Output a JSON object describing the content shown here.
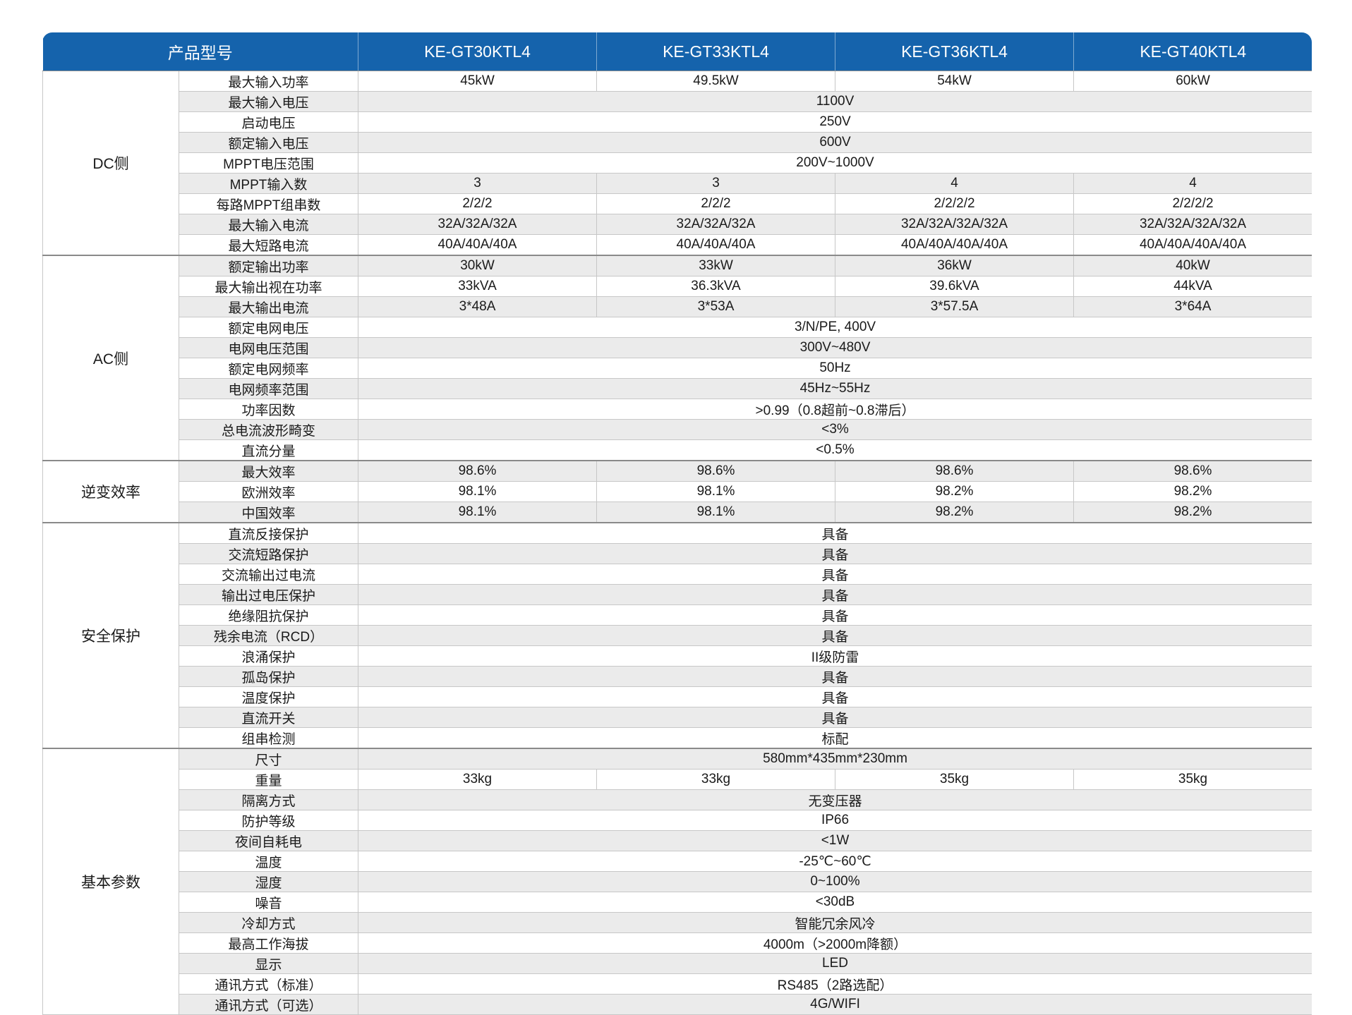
{
  "colors": {
    "header_bg": "#1563ac",
    "header_text": "#ffffff",
    "row_alt_bg": "#ebebeb",
    "border": "#c7c7c7",
    "section_border": "#8a8a8a",
    "text": "#1a1a1a"
  },
  "header": {
    "label": "产品型号",
    "models": [
      "KE-GT30KTL4",
      "KE-GT33KTL4",
      "KE-GT36KTL4",
      "KE-GT40KTL4"
    ]
  },
  "sections": [
    {
      "name": "DC侧",
      "rows": [
        {
          "label": "最大输入功率",
          "values": [
            "45kW",
            "49.5kW",
            "54kW",
            "60kW"
          ]
        },
        {
          "label": "最大输入电压",
          "merged": "1100V"
        },
        {
          "label": "启动电压",
          "merged": "250V"
        },
        {
          "label": "额定输入电压",
          "merged": "600V"
        },
        {
          "label": "MPPT电压范围",
          "merged": "200V~1000V"
        },
        {
          "label": "MPPT输入数",
          "values": [
            "3",
            "3",
            "4",
            "4"
          ]
        },
        {
          "label": "每路MPPT组串数",
          "values": [
            "2/2/2",
            "2/2/2",
            "2/2/2/2",
            "2/2/2/2"
          ]
        },
        {
          "label": "最大输入电流",
          "values": [
            "32A/32A/32A",
            "32A/32A/32A",
            "32A/32A/32A/32A",
            "32A/32A/32A/32A"
          ]
        },
        {
          "label": "最大短路电流",
          "values": [
            "40A/40A/40A",
            "40A/40A/40A",
            "40A/40A/40A/40A",
            "40A/40A/40A/40A"
          ]
        }
      ]
    },
    {
      "name": "AC侧",
      "rows": [
        {
          "label": "额定输出功率",
          "values": [
            "30kW",
            "33kW",
            "36kW",
            "40kW"
          ]
        },
        {
          "label": "最大输出视在功率",
          "values": [
            "33kVA",
            "36.3kVA",
            "39.6kVA",
            "44kVA"
          ]
        },
        {
          "label": "最大输出电流",
          "values": [
            "3*48A",
            "3*53A",
            "3*57.5A",
            "3*64A"
          ]
        },
        {
          "label": "额定电网电压",
          "merged": "3/N/PE, 400V"
        },
        {
          "label": "电网电压范围",
          "merged": "300V~480V"
        },
        {
          "label": "额定电网频率",
          "merged": "50Hz"
        },
        {
          "label": "电网频率范围",
          "merged": "45Hz~55Hz"
        },
        {
          "label": "功率因数",
          "merged": ">0.99（0.8超前~0.8滞后）"
        },
        {
          "label": "总电流波形畸变",
          "merged": "<3%"
        },
        {
          "label": "直流分量",
          "merged": "<0.5%"
        }
      ]
    },
    {
      "name": "逆变效率",
      "rows": [
        {
          "label": "最大效率",
          "values": [
            "98.6%",
            "98.6%",
            "98.6%",
            "98.6%"
          ]
        },
        {
          "label": "欧洲效率",
          "values": [
            "98.1%",
            "98.1%",
            "98.2%",
            "98.2%"
          ]
        },
        {
          "label": "中国效率",
          "values": [
            "98.1%",
            "98.1%",
            "98.2%",
            "98.2%"
          ]
        }
      ]
    },
    {
      "name": "安全保护",
      "rows": [
        {
          "label": "直流反接保护",
          "merged": "具备"
        },
        {
          "label": "交流短路保护",
          "merged": "具备"
        },
        {
          "label": "交流输出过电流",
          "merged": "具备"
        },
        {
          "label": "输出过电压保护",
          "merged": "具备"
        },
        {
          "label": "绝缘阻抗保护",
          "merged": "具备"
        },
        {
          "label": "残余电流（RCD）",
          "merged": "具备"
        },
        {
          "label": "浪涌保护",
          "merged": "II级防雷"
        },
        {
          "label": "孤岛保护",
          "merged": "具备"
        },
        {
          "label": "温度保护",
          "merged": "具备"
        },
        {
          "label": "直流开关",
          "merged": "具备"
        },
        {
          "label": "组串检测",
          "merged": "标配"
        }
      ]
    },
    {
      "name": "基本参数",
      "rows": [
        {
          "label": "尺寸",
          "merged": "580mm*435mm*230mm"
        },
        {
          "label": "重量",
          "values": [
            "33kg",
            "33kg",
            "35kg",
            "35kg"
          ]
        },
        {
          "label": "隔离方式",
          "merged": "无变压器"
        },
        {
          "label": "防护等级",
          "merged": "IP66"
        },
        {
          "label": "夜间自耗电",
          "merged": "<1W"
        },
        {
          "label": "温度",
          "merged": "-25℃~60℃"
        },
        {
          "label": "湿度",
          "merged": "0~100%"
        },
        {
          "label": "噪音",
          "merged": "<30dB"
        },
        {
          "label": "冷却方式",
          "merged": "智能冗余风冷"
        },
        {
          "label": "最高工作海拔",
          "merged": "4000m（>2000m降额）"
        },
        {
          "label": "显示",
          "merged": "LED"
        },
        {
          "label": "通讯方式（标准）",
          "merged": "RS485（2路选配）"
        },
        {
          "label": "通讯方式（可选）",
          "merged": "4G/WIFI"
        }
      ]
    }
  ]
}
